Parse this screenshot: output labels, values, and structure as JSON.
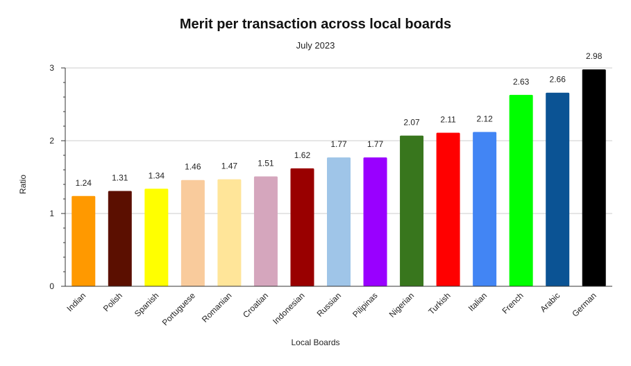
{
  "chart_data": {
    "type": "bar",
    "title": "Merit per transaction across local boards",
    "subtitle": "July 2023",
    "xlabel": "Local Boards",
    "ylabel": "Ratio",
    "ylim": [
      0,
      3
    ],
    "yticks": [
      0,
      1,
      2,
      3
    ],
    "grid": true,
    "legend": "none",
    "categories": [
      "Indian",
      "Polish",
      "Spanish",
      "Portuguese",
      "Romanian",
      "Croatian",
      "Indonesian",
      "Russian",
      "Pilipinas",
      "Nigerian",
      "Turkish",
      "Italian",
      "French",
      "Arabic",
      "German"
    ],
    "values": [
      1.24,
      1.31,
      1.34,
      1.46,
      1.47,
      1.51,
      1.62,
      1.77,
      1.77,
      2.07,
      2.11,
      2.12,
      2.63,
      2.66,
      2.98
    ],
    "value_labels": [
      "1.24",
      "1.31",
      "1.34",
      "1.46",
      "1.47",
      "1.51",
      "1.62",
      "1.77",
      "1.77",
      "2.07",
      "2.11",
      "2.12",
      "2.63",
      "2.66",
      "2.98"
    ],
    "colors": [
      "#ff9900",
      "#5b0f00",
      "#ffff00",
      "#f9cb9c",
      "#ffe599",
      "#d5a6bd",
      "#990000",
      "#9fc5e8",
      "#9900ff",
      "#38761d",
      "#ff0000",
      "#4285f4",
      "#00ff00",
      "#0b5394",
      "#000000"
    ]
  }
}
